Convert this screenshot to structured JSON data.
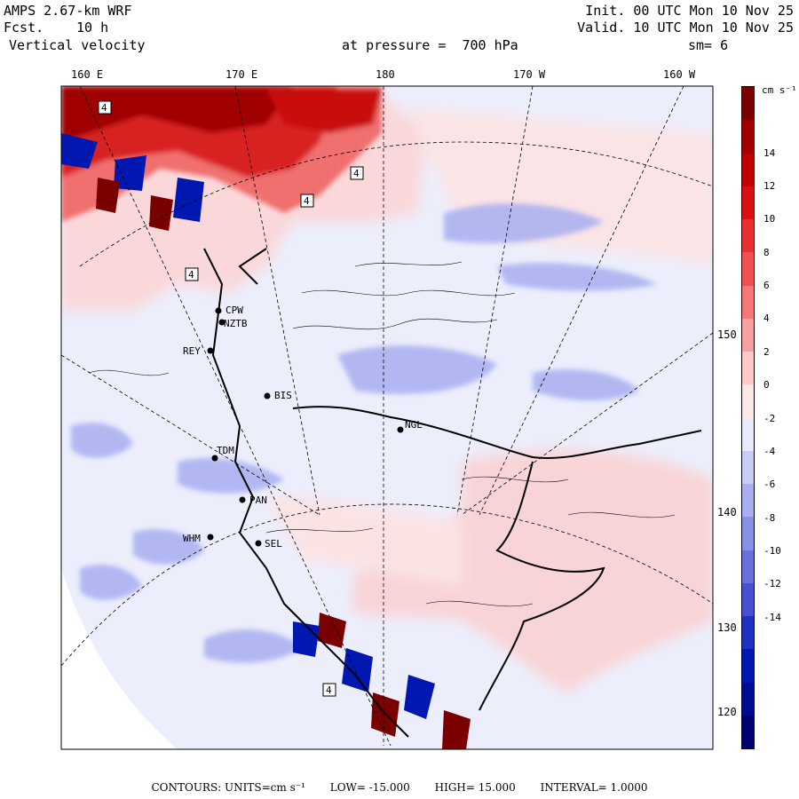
{
  "header": {
    "model": "AMPS 2.67-km WRF",
    "fcst_label": "Fcst.",
    "fcst_value": "10 h",
    "field": "Vertical velocity",
    "init": "Init. 00 UTC Mon 10 Nov 25",
    "valid": "Valid. 10 UTC Mon 10 Nov 25",
    "pressure": "at pressure =  700 hPa",
    "smoothing": "sm= 6"
  },
  "longitude_labels": [
    "160 E",
    "170 E",
    "180",
    "170 W",
    "160 W"
  ],
  "latitude_labels": [
    "150 W",
    "140 W",
    "130 W",
    "120 W"
  ],
  "stations": [
    "CPW",
    "NZTB",
    "REY",
    "BIS",
    "NGL",
    "TDM",
    "PAN",
    "WHM",
    "SEL"
  ],
  "contour_label": "4",
  "colorbar": {
    "units": "cm s⁻¹",
    "ticks": [
      "14",
      "12",
      "10",
      "8",
      "6",
      "4",
      "2",
      "0",
      "-2",
      "-4",
      "-6",
      "-8",
      "-10",
      "-12",
      "-14"
    ],
    "colors": [
      "#7a0000",
      "#a00000",
      "#c00000",
      "#d81010",
      "#e83030",
      "#f05050",
      "#f57878",
      "#f8a0a0",
      "#fcc8c8",
      "#fde8e8",
      "#e8eafc",
      "#c8ccf4",
      "#a8aef0",
      "#8890e6",
      "#6870dc",
      "#4850d0",
      "#2030c0",
      "#0018b0",
      "#000c90",
      "#000070"
    ]
  },
  "footer": {
    "contours": "CONTOURS:  UNITS=cm s⁻¹",
    "low": "LOW= -15.000",
    "high": "HIGH= 15.000",
    "interval": "INTERVAL= 1.0000"
  }
}
